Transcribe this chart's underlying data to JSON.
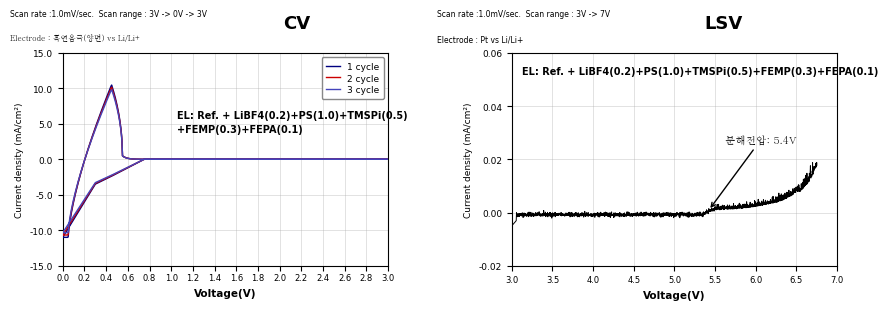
{
  "cv_title": "CV",
  "cv_scan_rate_text": "Scan rate :1.0mV/sec.  Scan range : 3V -> 0V -> 3V",
  "cv_electrode_text": "Electrode : 흑연음극(양면) vs Li/Li+",
  "cv_xlabel": "Voltage(V)",
  "cv_ylabel": "Current density (mA/cm²)",
  "cv_xlim": [
    0.0,
    3.0
  ],
  "cv_ylim": [
    -15.0,
    15.0
  ],
  "cv_xticks": [
    0.0,
    0.2,
    0.4,
    0.6,
    0.8,
    1.0,
    1.2,
    1.4,
    1.6,
    1.8,
    2.0,
    2.2,
    2.4,
    2.6,
    2.8,
    3.0
  ],
  "cv_yticks": [
    -15.0,
    -10.0,
    -5.0,
    0.0,
    5.0,
    10.0,
    15.0
  ],
  "cv_annotation_line1": "EL: Ref. + LiBF4(0.2)+PS(1.0)+TMSPi(0.5)",
  "cv_annotation_line2": "+FEMP(0.3)+FEPA(0.1)",
  "cv_legend": [
    "1 cycle",
    "2 cycle",
    "3 cycle"
  ],
  "cv_colors": [
    "#000080",
    "#CC0000",
    "#4444BB"
  ],
  "lsv_title": "LSV",
  "lsv_scan_rate_text": "Scan rate :1.0mV/sec.  Scan range : 3V -> 7V",
  "lsv_electrode_text": "Electrode : Pt vs Li/Li+",
  "lsv_xlabel": "Voltage(V)",
  "lsv_ylabel": "Current density (mA/cm²)",
  "lsv_xlim": [
    3.0,
    7.0
  ],
  "lsv_ylim": [
    -0.02,
    0.06
  ],
  "lsv_xticks": [
    3.0,
    3.5,
    4.0,
    4.5,
    5.0,
    5.5,
    6.0,
    6.5,
    7.0
  ],
  "lsv_yticks": [
    -0.02,
    0.0,
    0.02,
    0.04,
    0.06
  ],
  "lsv_annotation": "EL: Ref. + LiBF4(0.2)+PS(1.0)+TMSPi(0.5)+FEMP(0.3)+FEPA(0.1)",
  "lsv_breakdown_label": "분해전압: 5.4V",
  "bg_color": "#FFFFFF",
  "grid_color": "#AAAAAA"
}
